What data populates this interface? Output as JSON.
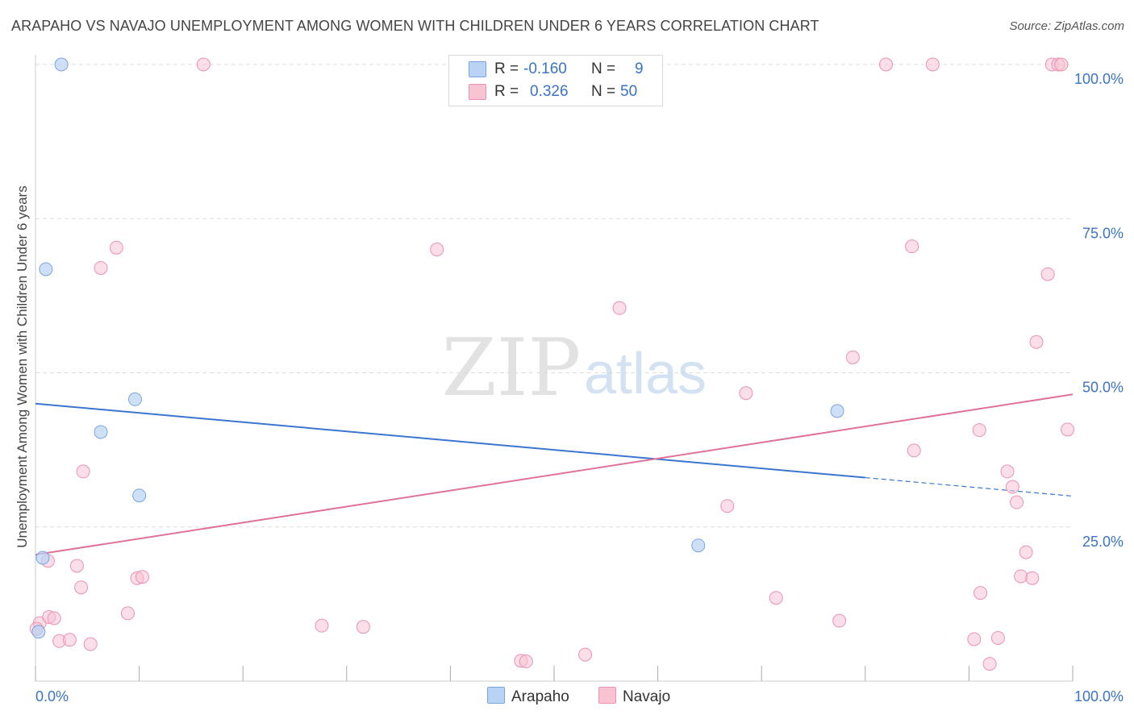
{
  "title": "ARAPAHO VS NAVAJO UNEMPLOYMENT AMONG WOMEN WITH CHILDREN UNDER 6 YEARS CORRELATION CHART",
  "source": "Source: ZipAtlas.com",
  "watermark": {
    "zip": "ZIP",
    "atlas": "atlas"
  },
  "legend": {
    "r_label": "R =",
    "n_label": "N =",
    "arapaho": {
      "r": "-0.160",
      "n": "9"
    },
    "navajo": {
      "r": "0.326",
      "n": "50"
    }
  },
  "colors": {
    "arapaho_fill": "#b9d3f5",
    "arapaho_stroke": "#7aa5de",
    "arapaho_line": "#3a76cf",
    "navajo_fill": "#f8c3d3",
    "navajo_stroke": "#eb93b0",
    "navajo_line": "#e0729a",
    "tick_text": "#3b73c4",
    "grid": "#dddddd"
  },
  "chart_data": {
    "type": "scatter",
    "title": "ARAPAHO VS NAVAJO UNEMPLOYMENT AMONG WOMEN WITH CHILDREN UNDER 6 YEARS CORRELATION CHART",
    "xlabel": "",
    "ylabel": "Unemployment Among Women with Children Under 6 years",
    "xlim": [
      0,
      100
    ],
    "ylim": [
      0,
      100
    ],
    "x_tick_labels": [
      "0.0%",
      "100.0%"
    ],
    "y_ticks": [
      25,
      50,
      75,
      100
    ],
    "y_tick_labels": [
      "25.0%",
      "50.0%",
      "75.0%",
      "100.0%"
    ],
    "grid": true,
    "legend_position": "bottom",
    "series": [
      {
        "name": "Arapaho",
        "points": [
          [
            2.5,
            100
          ],
          [
            1.0,
            66.8
          ],
          [
            9.6,
            45.7
          ],
          [
            6.3,
            40.4
          ],
          [
            10.0,
            30.1
          ],
          [
            0.7,
            20.0
          ],
          [
            0.3,
            8.0
          ],
          [
            77.3,
            43.8
          ],
          [
            63.9,
            22.0
          ]
        ],
        "trend": {
          "x0": 0,
          "y0": 45.0,
          "x1": 80,
          "y1": 33.0,
          "dash_to_x": 100,
          "dash_to_y": 30.0
        }
      },
      {
        "name": "Navajo",
        "points": [
          [
            16.2,
            100
          ],
          [
            82.0,
            100
          ],
          [
            86.5,
            100
          ],
          [
            98.0,
            100
          ],
          [
            98.6,
            100
          ],
          [
            98.9,
            100
          ],
          [
            7.8,
            70.3
          ],
          [
            6.3,
            67.0
          ],
          [
            38.7,
            70.0
          ],
          [
            84.5,
            70.5
          ],
          [
            97.6,
            66.0
          ],
          [
            56.3,
            60.5
          ],
          [
            78.8,
            52.5
          ],
          [
            96.5,
            55.0
          ],
          [
            68.5,
            46.7
          ],
          [
            91.0,
            40.7
          ],
          [
            99.5,
            40.8
          ],
          [
            84.7,
            37.4
          ],
          [
            93.7,
            34.0
          ],
          [
            94.2,
            31.5
          ],
          [
            94.6,
            29.0
          ],
          [
            4.6,
            34.0
          ],
          [
            66.7,
            28.4
          ],
          [
            1.2,
            19.5
          ],
          [
            4.0,
            18.7
          ],
          [
            4.4,
            15.2
          ],
          [
            9.8,
            16.7
          ],
          [
            10.3,
            16.9
          ],
          [
            8.9,
            11.0
          ],
          [
            95.5,
            20.9
          ],
          [
            95.0,
            17.0
          ],
          [
            96.1,
            16.7
          ],
          [
            71.4,
            13.5
          ],
          [
            91.1,
            14.3
          ],
          [
            77.5,
            9.8
          ],
          [
            27.6,
            9.0
          ],
          [
            31.6,
            8.8
          ],
          [
            0.4,
            9.4
          ],
          [
            1.3,
            10.4
          ],
          [
            1.8,
            10.2
          ],
          [
            2.3,
            6.5
          ],
          [
            3.3,
            6.7
          ],
          [
            5.3,
            6.0
          ],
          [
            46.8,
            3.3
          ],
          [
            47.3,
            3.2
          ],
          [
            53.0,
            4.3
          ],
          [
            92.8,
            7.0
          ],
          [
            90.5,
            6.8
          ],
          [
            92.0,
            2.8
          ],
          [
            0.1,
            8.5
          ]
        ],
        "trend": {
          "x0": 0,
          "y0": 20.5,
          "x1": 100,
          "y1": 46.5
        }
      }
    ]
  }
}
